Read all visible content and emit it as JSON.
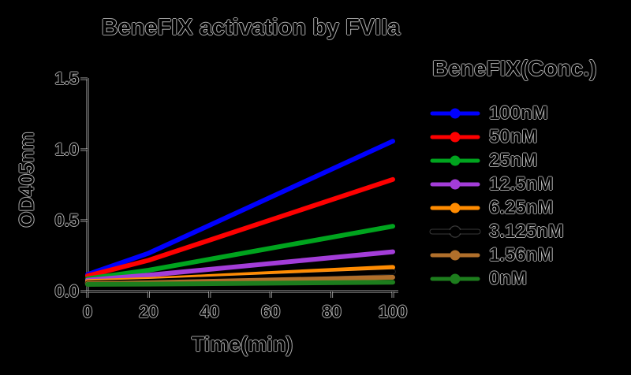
{
  "background_color": "#000000",
  "text_color": "#000000",
  "halo_color": "#ffffff",
  "chart_data": {
    "type": "line",
    "title": "BeneFIX activation by FVIIa",
    "xlabel": "Time(min)",
    "ylabel": "OD405nm",
    "xlim": [
      0,
      100
    ],
    "ylim": [
      0,
      1.5
    ],
    "grid": false,
    "x_ticks": [
      0,
      20,
      40,
      60,
      80,
      100
    ],
    "x_tick_labels": [
      "0",
      "20",
      "40",
      "60",
      "80",
      "100"
    ],
    "y_ticks": [
      1.5,
      1.0,
      0.5,
      0.0
    ],
    "y_tick_labels": [
      "1.5",
      "1.0",
      "0.5",
      "0.0"
    ],
    "legend_title": "BeneFIX(Conc.)",
    "legend_position": "right",
    "marker": "dot",
    "series": [
      {
        "name": "100nM",
        "color": "#0000fe",
        "x": [
          0,
          20,
          100
        ],
        "y": [
          0.12,
          0.27,
          1.06
        ]
      },
      {
        "name": "50nM",
        "color": "#fe0000",
        "x": [
          0,
          20,
          100
        ],
        "y": [
          0.11,
          0.22,
          0.79
        ]
      },
      {
        "name": "25nM",
        "color": "#00a41e",
        "x": [
          0,
          20,
          100
        ],
        "y": [
          0.09,
          0.15,
          0.46
        ]
      },
      {
        "name": "12.5nM",
        "color": "#a33dd8",
        "x": [
          0,
          20,
          100
        ],
        "y": [
          0.08,
          0.115,
          0.28
        ]
      },
      {
        "name": "6.25nM",
        "color": "#ff8b00",
        "x": [
          0,
          20,
          100
        ],
        "y": [
          0.07,
          0.085,
          0.17
        ]
      },
      {
        "name": "3.125nM",
        "color": "#000000",
        "x": [
          0,
          20,
          100
        ],
        "y": [
          0.06,
          0.072,
          0.14
        ]
      },
      {
        "name": "1.56nM",
        "color": "#b06f2b",
        "x": [
          0,
          20,
          100
        ],
        "y": [
          0.055,
          0.062,
          0.1
        ]
      },
      {
        "name": "0nM",
        "color": "#1d7d1d",
        "x": [
          0,
          20,
          100
        ],
        "y": [
          0.05,
          0.052,
          0.065
        ]
      }
    ]
  }
}
